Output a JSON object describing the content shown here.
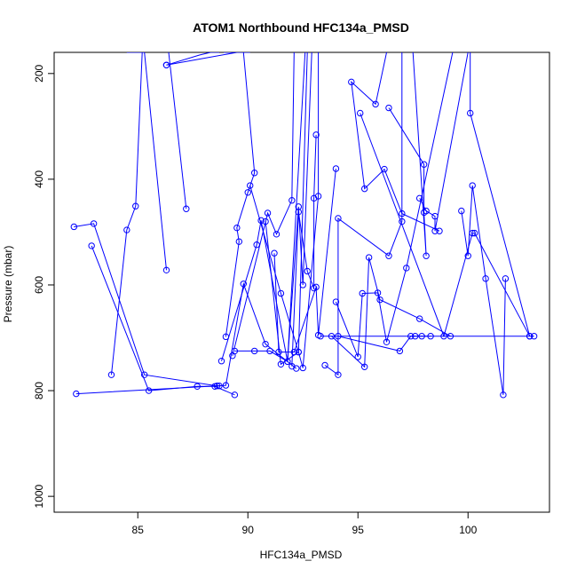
{
  "chart_data": {
    "type": "line",
    "title": "ATOM1 Northbound HFC134a_PMSD",
    "xlabel": "HFC134a_PMSD",
    "ylabel": "Pressure (mbar)",
    "xlim": [
      81.2,
      103.7
    ],
    "ylim": [
      1030,
      160
    ],
    "y_reversed": true,
    "x_ticks": [
      85,
      90,
      95,
      100
    ],
    "y_ticks": [
      200,
      400,
      600,
      800,
      1000
    ],
    "series_color": "#0000ff",
    "marker": "open-circle",
    "series": [
      {
        "x": [
          86.3,
          87.8,
          88.3,
          88.5,
          88.7
        ],
        "y": [
          184,
          165,
          160,
          160,
          160
        ]
      },
      {
        "x": [
          98.7,
          97.0,
          96.2,
          95.3,
          94.7,
          95.8,
          96.3
        ],
        "y": [
          498,
          465,
          381,
          418,
          216,
          258,
          160
        ]
      },
      {
        "x": [
          82.1,
          83.0,
          85.3,
          88.6,
          88.7
        ],
        "y": [
          490,
          484,
          770,
          791,
          791
        ]
      },
      {
        "x": [
          82.9,
          85.5,
          87.7,
          88.5,
          89.4
        ],
        "y": [
          526,
          800,
          792,
          792,
          808
        ]
      },
      {
        "x": [
          82.2,
          89.0,
          89.8,
          90.8,
          92.2
        ],
        "y": [
          806,
          790,
          598,
          712,
          758
        ]
      },
      {
        "x": [
          83.8,
          84.5,
          84.9,
          85.2
        ],
        "y": [
          770,
          496,
          451,
          160
        ]
      },
      {
        "x": [
          86.3,
          85.3,
          84.5
        ],
        "y": [
          572,
          160,
          160
        ]
      },
      {
        "x": [
          87.2,
          86.4
        ],
        "y": [
          456,
          160
        ]
      },
      {
        "x": [
          89.0,
          89.6,
          89.5,
          90.0,
          90.3,
          89.8
        ],
        "y": [
          698,
          518,
          492,
          425,
          388,
          160
        ]
      },
      {
        "x": [
          89.3,
          90.9,
          91.3,
          92.0,
          92.1
        ],
        "y": [
          734,
          464,
          504,
          440,
          160
        ]
      },
      {
        "x": [
          88.8,
          90.4,
          90.6,
          91.8,
          92.3,
          92.5,
          92.9
        ],
        "y": [
          744,
          524,
          478,
          745,
          452,
          600,
          160
        ]
      },
      {
        "x": [
          89.4,
          90.3,
          91.0,
          91.8,
          92.6
        ],
        "y": [
          725,
          725,
          725,
          745,
          160
        ]
      },
      {
        "x": [
          90.8,
          91.5,
          92.3,
          92.5,
          93.2,
          93.2
        ],
        "y": [
          480,
          750,
          727,
          757,
          432,
          160
        ]
      },
      {
        "x": [
          91.2,
          91.4,
          92.1,
          93.1,
          93.2,
          94.0
        ],
        "y": [
          540,
          727,
          727,
          604,
          695,
          380
        ]
      },
      {
        "x": [
          92.0,
          92.3,
          92.7,
          93.0,
          93.0,
          93.1
        ],
        "y": [
          754,
          462,
          574,
          606,
          436,
          316
        ]
      },
      {
        "x": [
          93.5,
          94.1,
          94.1,
          96.4,
          97.0,
          97.0
        ],
        "y": [
          752,
          770,
          474,
          545,
          480,
          160
        ]
      },
      {
        "x": [
          93.8,
          95.3,
          95.5,
          96.0,
          97.8,
          99.2
        ],
        "y": [
          697,
          755,
          548,
          628,
          664,
          697
        ]
      },
      {
        "x": [
          94.0,
          95.0,
          95.2,
          95.9,
          96.3,
          97.2,
          99.3
        ],
        "y": [
          632,
          736,
          616,
          615,
          708,
          568,
          160
        ]
      },
      {
        "x": [
          94.1,
          96.9,
          97.4,
          97.6,
          97.9,
          98.3
        ],
        "y": [
          697,
          725,
          697,
          697,
          697,
          697
        ]
      },
      {
        "x": [
          97.8,
          98.1,
          98.5,
          98.5,
          100.0
        ],
        "y": [
          436,
          460,
          470,
          498,
          160
        ]
      },
      {
        "x": [
          96.4,
          98.0,
          98.0,
          98.1,
          97.5
        ],
        "y": [
          265,
          372,
          463,
          545,
          160
        ]
      },
      {
        "x": [
          99.7,
          100.0,
          100.2,
          100.8,
          101.6,
          101.7
        ],
        "y": [
          460,
          545,
          412,
          588,
          808,
          588
        ]
      },
      {
        "x": [
          95.1,
          98.9,
          100.2,
          100.3,
          102.8
        ],
        "y": [
          275,
          697,
          502,
          502,
          697
        ]
      },
      {
        "x": [
          93.3,
          103.0,
          102.8,
          100.1,
          100.1
        ],
        "y": [
          697,
          697,
          697,
          275,
          160
        ]
      },
      {
        "x": [
          86.3,
          89.5,
          90.1
        ],
        "y": [
          184,
          160,
          160
        ]
      },
      {
        "x": [
          90.1,
          91.5,
          92.3,
          92.7
        ],
        "y": [
          412,
          616,
          727,
          160
        ]
      },
      {
        "x": [
          88.9,
          90.0
        ],
        "y": [
          160,
          160
        ]
      }
    ]
  }
}
